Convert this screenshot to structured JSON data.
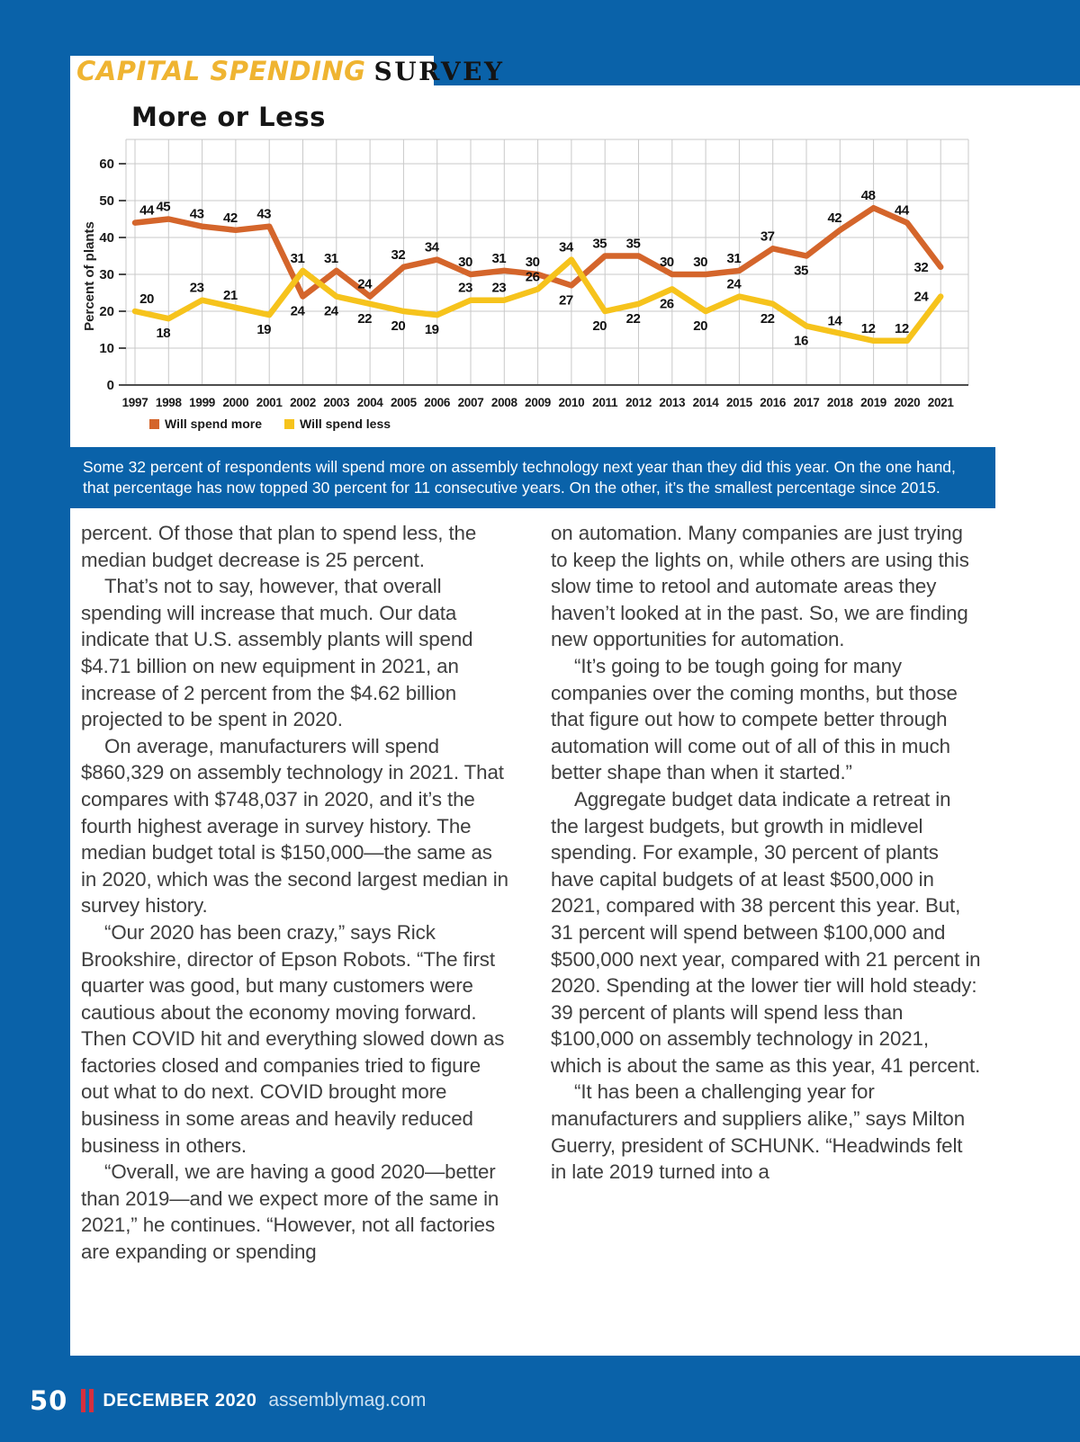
{
  "page": {
    "header": {
      "title_em": "CAPITAL SPENDING",
      "title_rest": "SURVEY"
    },
    "caption": "Some 32 percent of respondents will spend more on assembly technology next year than they did this year. On the one hand, that percentage has now topped 30 percent for 11 consecutive years. On the other, it’s the smallest percentage since 2015.",
    "article": {
      "left_column": [
        "percent. Of those that plan to spend less, the median budget decrease is 25 percent.",
        "That’s not to say, however, that overall spending will increase that much. Our data indicate that U.S. assembly plants will spend $4.71 billion on new equipment in 2021, an increase of 2 percent from the $4.62 billion projected to be spent in 2020.",
        "On average, manufacturers will spend $860,329 on assembly technology in 2021. That compares with $748,037 in 2020, and it’s the fourth highest average in survey history. The median budget total is $150,000—the same as in 2020, which was the second largest median in survey history.",
        "“Our 2020 has been crazy,” says Rick Brookshire, director of Epson Robots. “The first quarter was good, but many customers were cautious about the economy moving forward. Then COVID hit and everything slowed down as factories closed and companies tried to figure out what to do next. COVID brought more business in some areas and heavily reduced business in others.",
        "“Overall, we are having a good 2020—better than 2019—and we expect more of the same in 2021,” he continues. “However, not all factories are expanding or spending"
      ],
      "right_column": [
        "on automation. Many companies are just trying to keep the lights on, while others are using this slow time to retool and automate areas they haven’t looked at in the past. So, we are finding new opportunities for automation.",
        "“It’s going to be tough going for many companies over the coming months, but those that figure out how to compete better through automation will come out of all of this in much better shape than when it started.”",
        "Aggregate budget data indicate a retreat in the largest budgets, but growth in midlevel spending. For example, 30 percent of plants have capital budgets of at least $500,000 in 2021, compared with 38 percent this year. But, 31 percent will spend between $100,000 and $500,000 next year, compared with 21 percent in 2020. Spending at the lower tier will hold steady: 39 percent of plants will spend less than $100,000 on assembly technology in 2021, which is about the same as this year, 41 percent.",
        "“It has been a challenging year for manufacturers and suppliers alike,” says Milton Guerry, president of SCHUNK. “Headwinds felt in late 2019 turned into a"
      ]
    },
    "footer": {
      "page_number": "50",
      "issue": "DECEMBER 2020",
      "website": "assemblymag.com"
    }
  },
  "chart_data": {
    "type": "line",
    "title": "More or Less",
    "ylabel": "Percent of plants",
    "xlabel": "",
    "ylim": [
      0,
      60
    ],
    "yticks": [
      0,
      10,
      20,
      30,
      40,
      50,
      60
    ],
    "grid": true,
    "legend_position": "bottom",
    "x": [
      "1997",
      "1998",
      "1999",
      "2000",
      "2001",
      "2002",
      "2003",
      "2004",
      "2005",
      "2006",
      "2007",
      "2008",
      "2009",
      "2010",
      "2011",
      "2012",
      "2013",
      "2014",
      "2015",
      "2016",
      "2017",
      "2018",
      "2019",
      "2020",
      "2021"
    ],
    "series": [
      {
        "name": "Will spend more",
        "color": "#D4652B",
        "values": [
          44,
          45,
          43,
          42,
          43,
          24,
          31,
          24,
          32,
          34,
          30,
          31,
          30,
          27,
          35,
          35,
          30,
          30,
          31,
          37,
          35,
          42,
          48,
          44,
          32
        ],
        "label_pos": [
          "a",
          "a",
          "a",
          "a",
          "a",
          "b",
          "a",
          "a",
          "a",
          "a",
          "a",
          "a",
          "a",
          "b",
          "a",
          "a",
          "a",
          "a",
          "a",
          "a",
          "b",
          "a",
          "a",
          "a",
          "l"
        ]
      },
      {
        "name": "Will spend less",
        "color": "#F6C31C",
        "values": [
          20,
          18,
          23,
          21,
          19,
          31,
          24,
          22,
          20,
          19,
          23,
          23,
          26,
          34,
          20,
          22,
          26,
          20,
          24,
          22,
          16,
          14,
          12,
          12,
          24
        ],
        "label_pos": [
          "a",
          "b",
          "a",
          "a",
          "b",
          "a",
          "b",
          "b",
          "b",
          "b",
          "a",
          "a",
          "a",
          "a",
          "b",
          "b",
          "b",
          "b",
          "a",
          "b",
          "b",
          "a",
          "a",
          "a",
          "l"
        ]
      }
    ]
  }
}
